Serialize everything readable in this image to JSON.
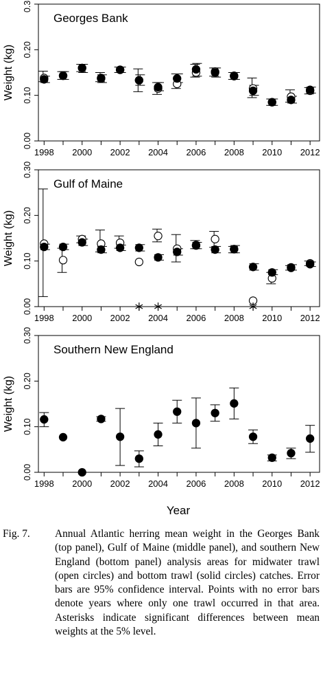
{
  "figure": {
    "xlabel": "Year",
    "ylabel": "Weight (kg)"
  },
  "chart_data": [
    {
      "type": "scatter",
      "title": "Georges Bank",
      "xlabel": "",
      "ylabel": "Weight (kg)",
      "xlim": [
        1997.7,
        2012.5
      ],
      "ylim": [
        0,
        0.3
      ],
      "xticks": [
        "1998",
        "2000",
        "2002",
        "2004",
        "2006",
        "2008",
        "2010",
        "2012"
      ],
      "yticks": [
        "0.00",
        "0.10",
        "0.20",
        "0.30"
      ],
      "grid": false,
      "x": [
        1998,
        1999,
        2000,
        2001,
        2002,
        2003,
        2004,
        2005,
        2006,
        2007,
        2008,
        2009,
        2010,
        2011,
        2012
      ],
      "series": [
        {
          "name": "midwater trawl",
          "marker": "open-circle",
          "values": [
            0.138,
            0.143,
            0.16,
            0.138,
            0.156,
            0.133,
            0.115,
            0.125,
            0.15,
            0.152,
            0.142,
            0.115,
            0.085,
            0.097,
            0.11
          ],
          "ci_low": [
            0.13,
            0.135,
            0.152,
            0.13,
            0.15,
            0.108,
            0.102,
            0.115,
            0.14,
            0.142,
            0.135,
            0.095,
            0.078,
            0.085,
            0.103
          ],
          "ci_high": [
            0.153,
            0.152,
            0.168,
            0.15,
            0.162,
            0.158,
            0.128,
            0.147,
            0.168,
            0.16,
            0.15,
            0.138,
            0.092,
            0.112,
            0.117
          ]
        },
        {
          "name": "bottom trawl",
          "marker": "solid-circle",
          "values": [
            0.135,
            0.143,
            0.16,
            0.137,
            0.156,
            0.133,
            0.118,
            0.137,
            0.157,
            0.15,
            0.143,
            0.11,
            0.085,
            0.09,
            0.112
          ],
          "ci_low": [
            0.128,
            0.135,
            0.15,
            0.128,
            0.15,
            0.122,
            0.11,
            0.128,
            0.142,
            0.14,
            0.135,
            0.1,
            0.078,
            0.083,
            0.105
          ],
          "ci_high": [
            0.142,
            0.152,
            0.168,
            0.145,
            0.162,
            0.145,
            0.128,
            0.147,
            0.17,
            0.16,
            0.15,
            0.122,
            0.092,
            0.098,
            0.118
          ]
        }
      ],
      "significant_years": []
    },
    {
      "type": "scatter",
      "title": "Gulf of Maine",
      "xlabel": "",
      "ylabel": "Weight (kg)",
      "xlim": [
        1997.7,
        2012.5
      ],
      "ylim": [
        0,
        0.3
      ],
      "xticks": [
        "1998",
        "2000",
        "2002",
        "2004",
        "2006",
        "2008",
        "2010",
        "2012"
      ],
      "yticks": [
        "0.00",
        "0.10",
        "0.20",
        "0.30"
      ],
      "grid": false,
      "x": [
        1998,
        1999,
        2000,
        2001,
        2002,
        2003,
        2004,
        2005,
        2006,
        2007,
        2008,
        2009,
        2010,
        2011,
        2012
      ],
      "series": [
        {
          "name": "midwater trawl",
          "marker": "open-circle",
          "values": [
            0.138,
            0.102,
            0.148,
            0.138,
            0.14,
            0.098,
            0.155,
            0.127,
            0.135,
            0.148,
            0.126,
            0.013,
            0.062,
            0.085,
            0.095
          ],
          "ci_low": [
            0.022,
            0.075,
            0.14,
            0.12,
            0.128,
            null,
            0.142,
            0.098,
            0.127,
            0.13,
            0.118,
            null,
            0.05,
            0.08,
            0.09
          ],
          "ci_high": [
            0.258,
            0.128,
            0.155,
            0.168,
            0.155,
            null,
            0.17,
            0.158,
            0.145,
            0.165,
            0.132,
            null,
            0.075,
            0.09,
            0.1
          ]
        },
        {
          "name": "bottom trawl",
          "marker": "solid-circle",
          "values": [
            0.131,
            0.131,
            0.141,
            0.125,
            0.129,
            0.129,
            0.108,
            0.12,
            0.134,
            0.125,
            0.126,
            0.087,
            0.075,
            0.086,
            0.093
          ],
          "ci_low": [
            0.125,
            0.125,
            0.134,
            0.118,
            0.123,
            0.122,
            0.102,
            0.113,
            0.127,
            0.118,
            0.118,
            0.08,
            0.07,
            0.08,
            0.088
          ],
          "ci_high": [
            0.137,
            0.137,
            0.148,
            0.132,
            0.135,
            0.136,
            0.114,
            0.127,
            0.141,
            0.132,
            0.134,
            0.094,
            0.081,
            0.092,
            0.098
          ]
        }
      ],
      "significant_years": [
        2003,
        2004,
        2009
      ],
      "significance_marker": "*"
    },
    {
      "type": "scatter",
      "title": "Southern New England",
      "xlabel": "Year",
      "ylabel": "Weight (kg)",
      "xlim": [
        1997.7,
        2012.5
      ],
      "ylim": [
        0,
        0.3
      ],
      "xticks": [
        "1998",
        "2000",
        "2002",
        "2004",
        "2006",
        "2008",
        "2010",
        "2012"
      ],
      "yticks": [
        "0.00",
        "0.10",
        "0.20",
        "0.30"
      ],
      "grid": false,
      "x": [
        1998,
        1999,
        2000,
        2001,
        2002,
        2003,
        2004,
        2005,
        2006,
        2007,
        2008,
        2009,
        2010,
        2011,
        2012
      ],
      "series": [
        {
          "name": "bottom trawl",
          "marker": "solid-circle",
          "values": [
            0.116,
            0.077,
            0.0,
            0.117,
            0.078,
            0.03,
            0.083,
            0.133,
            0.108,
            0.13,
            0.151,
            0.078,
            0.032,
            0.042,
            0.074
          ],
          "ci_low": [
            0.1,
            null,
            null,
            0.112,
            0.015,
            0.012,
            0.058,
            0.108,
            0.053,
            0.112,
            0.117,
            0.063,
            0.025,
            0.03,
            0.044
          ],
          "ci_high": [
            0.131,
            null,
            null,
            0.122,
            0.14,
            0.047,
            0.108,
            0.158,
            0.163,
            0.148,
            0.185,
            0.093,
            0.038,
            0.053,
            0.103
          ]
        }
      ],
      "significant_years": []
    }
  ],
  "caption": {
    "label": "Fig. 7.",
    "text": "Annual Atlantic herring mean weight in the Georges Bank (top panel), Gulf of Maine (middle panel), and southern New England (bottom panel) analysis areas for midwater trawl (open circles) and bottom trawl (solid circles) catches. Error bars are 95% confidence interval. Points with no error bars denote years where only one trawl occurred in that area. Asterisks indicate significant differences between mean weights at the 5% level."
  }
}
